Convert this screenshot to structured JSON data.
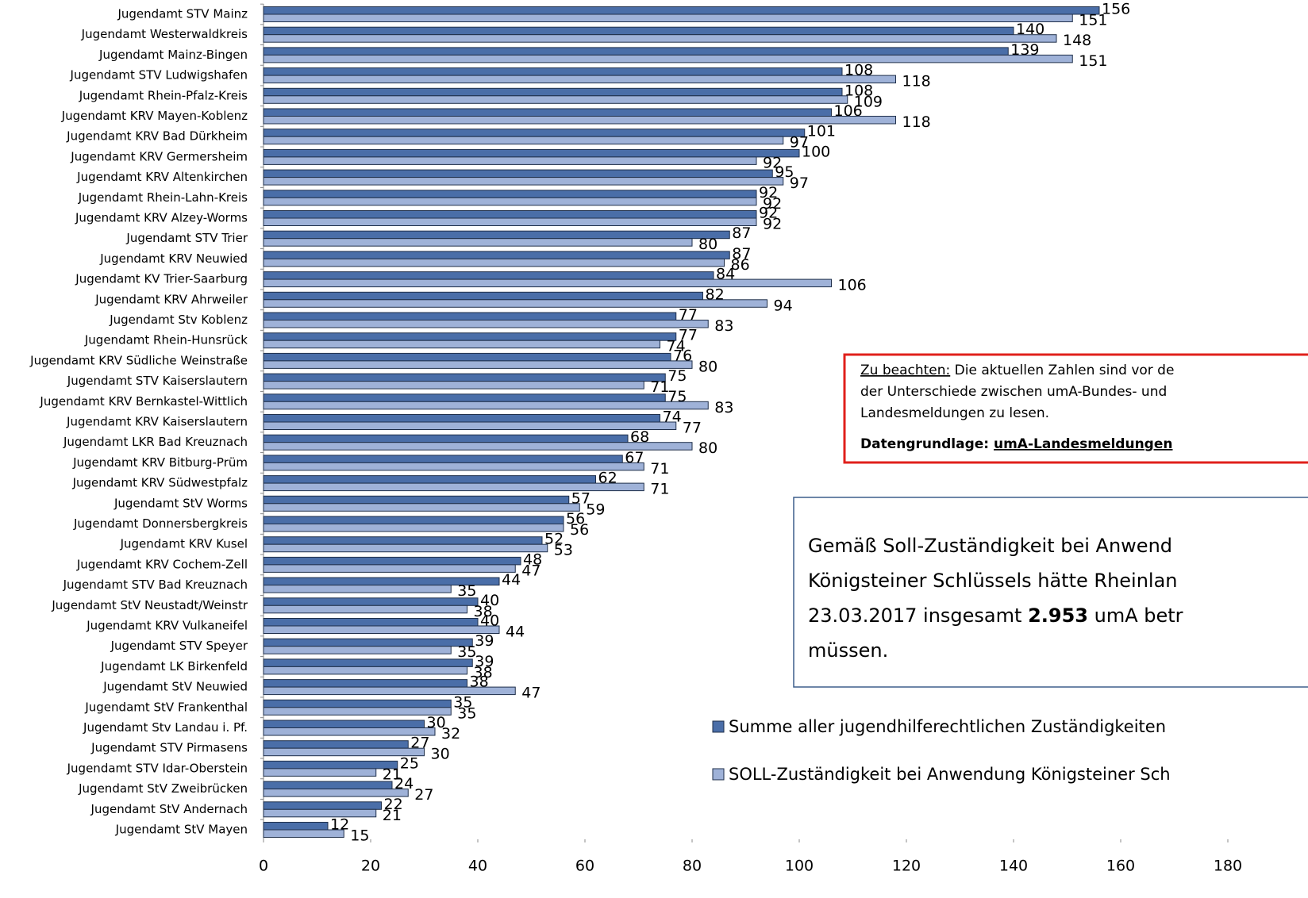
{
  "chart_data": {
    "type": "bar",
    "orientation": "horizontal",
    "categories": [
      "Jugendamt STV Mainz",
      "Jugendamt Westerwaldkreis",
      "Jugendamt Mainz-Bingen",
      "Jugendamt STV Ludwigshafen",
      "Jugendamt Rhein-Pfalz-Kreis",
      "Jugendamt KRV Mayen-Koblenz",
      "Jugendamt KRV Bad Dürkheim",
      "Jugendamt KRV Germersheim",
      "Jugendamt KRV Altenkirchen",
      "Jugendamt Rhein-Lahn-Kreis",
      "Jugendamt KRV Alzey-Worms",
      "Jugendamt STV Trier",
      "Jugendamt KRV Neuwied",
      "Jugendamt KV Trier-Saarburg",
      "Jugendamt KRV Ahrweiler",
      "Jugendamt Stv Koblenz",
      "Jugendamt Rhein-Hunsrück",
      "Jugendamt KRV Südliche Weinstraße",
      "Jugendamt STV Kaiserslautern",
      "Jugendamt KRV Bernkastel-Wittlich",
      "Jugendamt KRV Kaiserslautern",
      "Jugendamt LKR Bad Kreuznach",
      "Jugendamt KRV Bitburg-Prüm",
      "Jugendamt KRV Südwestpfalz",
      "Jugendamt StV Worms",
      "Jugendamt Donnersbergkreis",
      "Jugendamt KRV Kusel",
      "Jugendamt KRV Cochem-Zell",
      "Jugendamt STV Bad Kreuznach",
      "Jugendamt StV Neustadt/Weinstr",
      "Jugendamt KRV Vulkaneifel",
      "Jugendamt STV Speyer",
      "Jugendamt LK Birkenfeld",
      "Jugendamt StV Neuwied",
      "Jugendamt StV Frankenthal",
      "Jugendamt Stv Landau i. Pf.",
      "Jugendamt STV Pirmasens",
      "Jugendamt STV Idar-Oberstein",
      "Jugendamt StV Zweibrücken",
      "Jugendamt StV Andernach",
      "Jugendamt StV Mayen"
    ],
    "series": [
      {
        "name": "Summe aller jugendhilferechtlichen Zuständigkeiten",
        "color": "#4a6ea8",
        "values": [
          156,
          140,
          139,
          108,
          108,
          106,
          101,
          100,
          95,
          92,
          92,
          87,
          87,
          84,
          82,
          77,
          77,
          76,
          75,
          75,
          74,
          68,
          67,
          62,
          57,
          56,
          52,
          48,
          44,
          40,
          40,
          39,
          39,
          38,
          35,
          30,
          27,
          25,
          24,
          22,
          12
        ]
      },
      {
        "name": "SOLL-Zuständigkeit bei Anwendung Königsteiner Sch",
        "color": "#9fb2d8",
        "values": [
          151,
          148,
          151,
          118,
          109,
          118,
          97,
          92,
          97,
          92,
          92,
          80,
          86,
          106,
          94,
          83,
          74,
          80,
          71,
          83,
          77,
          80,
          71,
          71,
          59,
          56,
          53,
          47,
          35,
          38,
          44,
          35,
          38,
          47,
          35,
          32,
          30,
          21,
          27,
          21,
          15
        ]
      }
    ],
    "xlim": [
      0,
      180
    ],
    "xticks": [
      0,
      20,
      40,
      60,
      80,
      100,
      120,
      140,
      160,
      180
    ],
    "legend": "right",
    "annotations": [
      {
        "lines": [
          [
            "Zu beachten:",
            " Die aktuellen Zahlen sind vor de"
          ],
          [
            "der Unterschiede zwischen umA-Bundes- und"
          ],
          [
            "Landesmeldungen zu lesen."
          ],
          [
            "Datengrundlage: ",
            "umA-Landesmeldungen"
          ]
        ]
      },
      {
        "lines": [
          [
            "Gemäß Soll-Zuständigkeit bei Anwend"
          ],
          [
            "Königsteiner Schlüssels hätte Rheinlan"
          ],
          [
            "23.03.2017 insgesamt ",
            "2.953",
            " umA betr"
          ],
          [
            "müssen."
          ]
        ]
      }
    ]
  }
}
